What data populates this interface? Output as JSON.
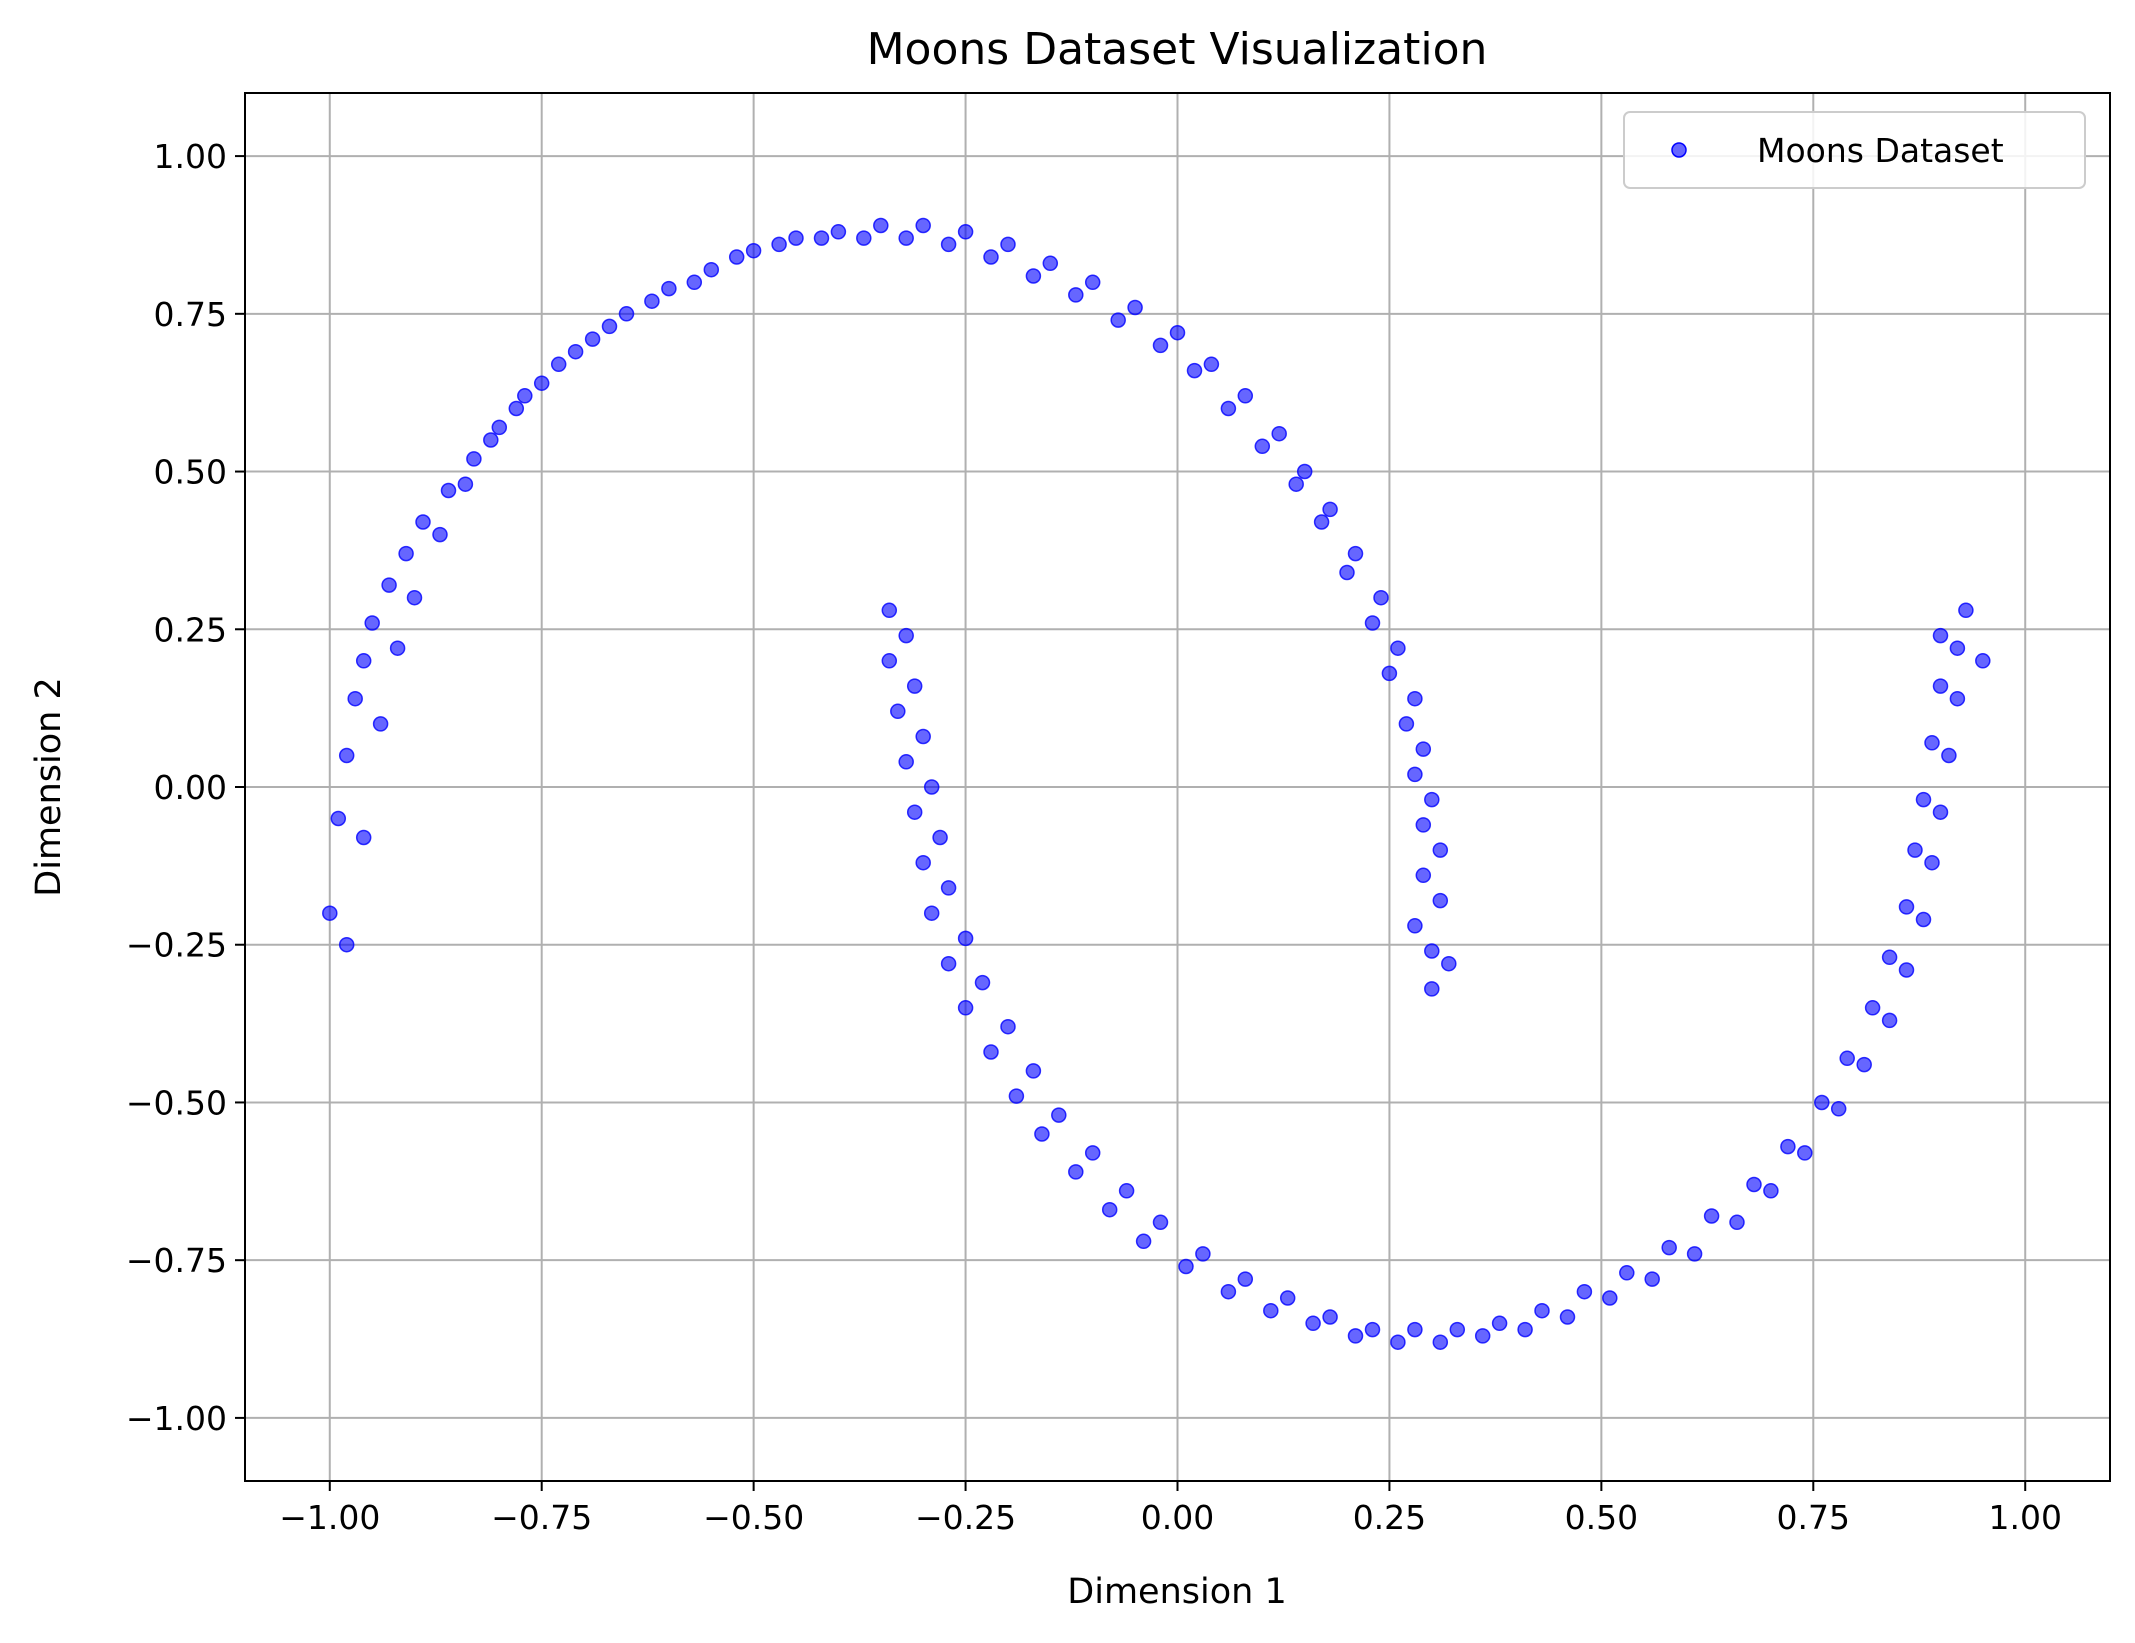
{
  "chart_data": {
    "type": "scatter",
    "title": "Moons Dataset Visualization",
    "xlabel": "Dimension 1",
    "ylabel": "Dimension 2",
    "xlim": [
      -1.1,
      1.1
    ],
    "ylim": [
      -1.1,
      1.1
    ],
    "xticks": [
      -1.0,
      -0.75,
      -0.5,
      -0.25,
      0.0,
      0.25,
      0.5,
      0.75,
      1.0
    ],
    "yticks": [
      -1.0,
      -0.75,
      -0.5,
      -0.25,
      0.0,
      0.25,
      0.5,
      0.75,
      1.0
    ],
    "xtick_labels": [
      "−1.00",
      "−0.75",
      "−0.50",
      "−0.25",
      "0.00",
      "0.25",
      "0.50",
      "0.75",
      "1.00"
    ],
    "ytick_labels": [
      "−1.00",
      "−0.75",
      "−0.50",
      "−0.25",
      "0.00",
      "0.25",
      "0.50",
      "0.75",
      "1.00"
    ],
    "grid": true,
    "legend_position": "upper right",
    "series": [
      {
        "name": "Moons Dataset",
        "color": "#0000ff",
        "alpha": 0.6,
        "marker": "circle",
        "points": [
          [
            -1.0,
            -0.2
          ],
          [
            -0.99,
            -0.05
          ],
          [
            -0.98,
            0.05
          ],
          [
            -0.97,
            0.14
          ],
          [
            -0.96,
            0.2
          ],
          [
            -0.95,
            0.26
          ],
          [
            -0.93,
            0.32
          ],
          [
            -0.91,
            0.37
          ],
          [
            -0.89,
            0.42
          ],
          [
            -0.86,
            0.47
          ],
          [
            -0.83,
            0.52
          ],
          [
            -0.8,
            0.57
          ],
          [
            -0.77,
            0.62
          ],
          [
            -0.73,
            0.67
          ],
          [
            -0.69,
            0.71
          ],
          [
            -0.65,
            0.75
          ],
          [
            -0.6,
            0.79
          ],
          [
            -0.55,
            0.82
          ],
          [
            -0.5,
            0.85
          ],
          [
            -0.45,
            0.87
          ],
          [
            -0.4,
            0.88
          ],
          [
            -0.35,
            0.89
          ],
          [
            -0.3,
            0.89
          ],
          [
            -0.25,
            0.88
          ],
          [
            -0.2,
            0.86
          ],
          [
            -0.15,
            0.83
          ],
          [
            -0.1,
            0.8
          ],
          [
            -0.05,
            0.76
          ],
          [
            0.0,
            0.72
          ],
          [
            0.04,
            0.67
          ],
          [
            0.08,
            0.62
          ],
          [
            0.12,
            0.56
          ],
          [
            0.15,
            0.5
          ],
          [
            0.18,
            0.44
          ],
          [
            0.21,
            0.37
          ],
          [
            0.24,
            0.3
          ],
          [
            0.26,
            0.22
          ],
          [
            0.28,
            0.14
          ],
          [
            0.29,
            0.06
          ],
          [
            0.3,
            -0.02
          ],
          [
            0.31,
            -0.1
          ],
          [
            0.31,
            -0.18
          ],
          [
            0.3,
            -0.26
          ],
          [
            0.3,
            -0.32
          ],
          [
            -0.98,
            -0.25
          ],
          [
            -0.96,
            -0.08
          ],
          [
            -0.94,
            0.1
          ],
          [
            -0.92,
            0.22
          ],
          [
            -0.9,
            0.3
          ],
          [
            -0.87,
            0.4
          ],
          [
            -0.84,
            0.48
          ],
          [
            -0.81,
            0.55
          ],
          [
            -0.78,
            0.6
          ],
          [
            -0.75,
            0.64
          ],
          [
            -0.71,
            0.69
          ],
          [
            -0.67,
            0.73
          ],
          [
            -0.62,
            0.77
          ],
          [
            -0.57,
            0.8
          ],
          [
            -0.52,
            0.84
          ],
          [
            -0.47,
            0.86
          ],
          [
            -0.42,
            0.87
          ],
          [
            -0.37,
            0.87
          ],
          [
            -0.32,
            0.87
          ],
          [
            -0.27,
            0.86
          ],
          [
            -0.22,
            0.84
          ],
          [
            -0.17,
            0.81
          ],
          [
            -0.12,
            0.78
          ],
          [
            -0.07,
            0.74
          ],
          [
            -0.02,
            0.7
          ],
          [
            0.02,
            0.66
          ],
          [
            0.06,
            0.6
          ],
          [
            0.1,
            0.54
          ],
          [
            0.14,
            0.48
          ],
          [
            0.17,
            0.42
          ],
          [
            0.2,
            0.34
          ],
          [
            0.23,
            0.26
          ],
          [
            0.25,
            0.18
          ],
          [
            0.27,
            0.1
          ],
          [
            0.28,
            0.02
          ],
          [
            0.29,
            -0.06
          ],
          [
            0.29,
            -0.14
          ],
          [
            0.28,
            -0.22
          ],
          [
            0.32,
            -0.28
          ],
          [
            -0.34,
            0.28
          ],
          [
            -0.34,
            0.2
          ],
          [
            -0.33,
            0.12
          ],
          [
            -0.32,
            0.04
          ],
          [
            -0.31,
            -0.04
          ],
          [
            -0.3,
            -0.12
          ],
          [
            -0.29,
            -0.2
          ],
          [
            -0.27,
            -0.28
          ],
          [
            -0.25,
            -0.35
          ],
          [
            -0.22,
            -0.42
          ],
          [
            -0.19,
            -0.49
          ],
          [
            -0.16,
            -0.55
          ],
          [
            -0.12,
            -0.61
          ],
          [
            -0.08,
            -0.67
          ],
          [
            -0.04,
            -0.72
          ],
          [
            0.01,
            -0.76
          ],
          [
            0.06,
            -0.8
          ],
          [
            0.11,
            -0.83
          ],
          [
            0.16,
            -0.85
          ],
          [
            0.21,
            -0.87
          ],
          [
            0.26,
            -0.88
          ],
          [
            0.31,
            -0.88
          ],
          [
            0.36,
            -0.87
          ],
          [
            0.41,
            -0.86
          ],
          [
            0.46,
            -0.84
          ],
          [
            0.51,
            -0.81
          ],
          [
            0.56,
            -0.78
          ],
          [
            0.61,
            -0.74
          ],
          [
            0.66,
            -0.69
          ],
          [
            0.7,
            -0.64
          ],
          [
            0.74,
            -0.58
          ],
          [
            0.78,
            -0.51
          ],
          [
            0.81,
            -0.44
          ],
          [
            0.84,
            -0.37
          ],
          [
            0.86,
            -0.29
          ],
          [
            0.88,
            -0.21
          ],
          [
            0.89,
            -0.12
          ],
          [
            0.9,
            -0.04
          ],
          [
            0.91,
            0.05
          ],
          [
            0.92,
            0.14
          ],
          [
            0.92,
            0.22
          ],
          [
            0.93,
            0.28
          ],
          [
            -0.32,
            0.24
          ],
          [
            -0.31,
            0.16
          ],
          [
            -0.3,
            0.08
          ],
          [
            -0.29,
            0.0
          ],
          [
            -0.28,
            -0.08
          ],
          [
            -0.27,
            -0.16
          ],
          [
            -0.25,
            -0.24
          ],
          [
            -0.23,
            -0.31
          ],
          [
            -0.2,
            -0.38
          ],
          [
            -0.17,
            -0.45
          ],
          [
            -0.14,
            -0.52
          ],
          [
            -0.1,
            -0.58
          ],
          [
            -0.06,
            -0.64
          ],
          [
            -0.02,
            -0.69
          ],
          [
            0.03,
            -0.74
          ],
          [
            0.08,
            -0.78
          ],
          [
            0.13,
            -0.81
          ],
          [
            0.18,
            -0.84
          ],
          [
            0.23,
            -0.86
          ],
          [
            0.28,
            -0.86
          ],
          [
            0.33,
            -0.86
          ],
          [
            0.38,
            -0.85
          ],
          [
            0.43,
            -0.83
          ],
          [
            0.48,
            -0.8
          ],
          [
            0.53,
            -0.77
          ],
          [
            0.58,
            -0.73
          ],
          [
            0.63,
            -0.68
          ],
          [
            0.68,
            -0.63
          ],
          [
            0.72,
            -0.57
          ],
          [
            0.76,
            -0.5
          ],
          [
            0.79,
            -0.43
          ],
          [
            0.82,
            -0.35
          ],
          [
            0.84,
            -0.27
          ],
          [
            0.86,
            -0.19
          ],
          [
            0.87,
            -0.1
          ],
          [
            0.88,
            -0.02
          ],
          [
            0.89,
            0.07
          ],
          [
            0.9,
            0.16
          ],
          [
            0.9,
            0.24
          ],
          [
            0.95,
            0.2
          ]
        ]
      }
    ]
  }
}
